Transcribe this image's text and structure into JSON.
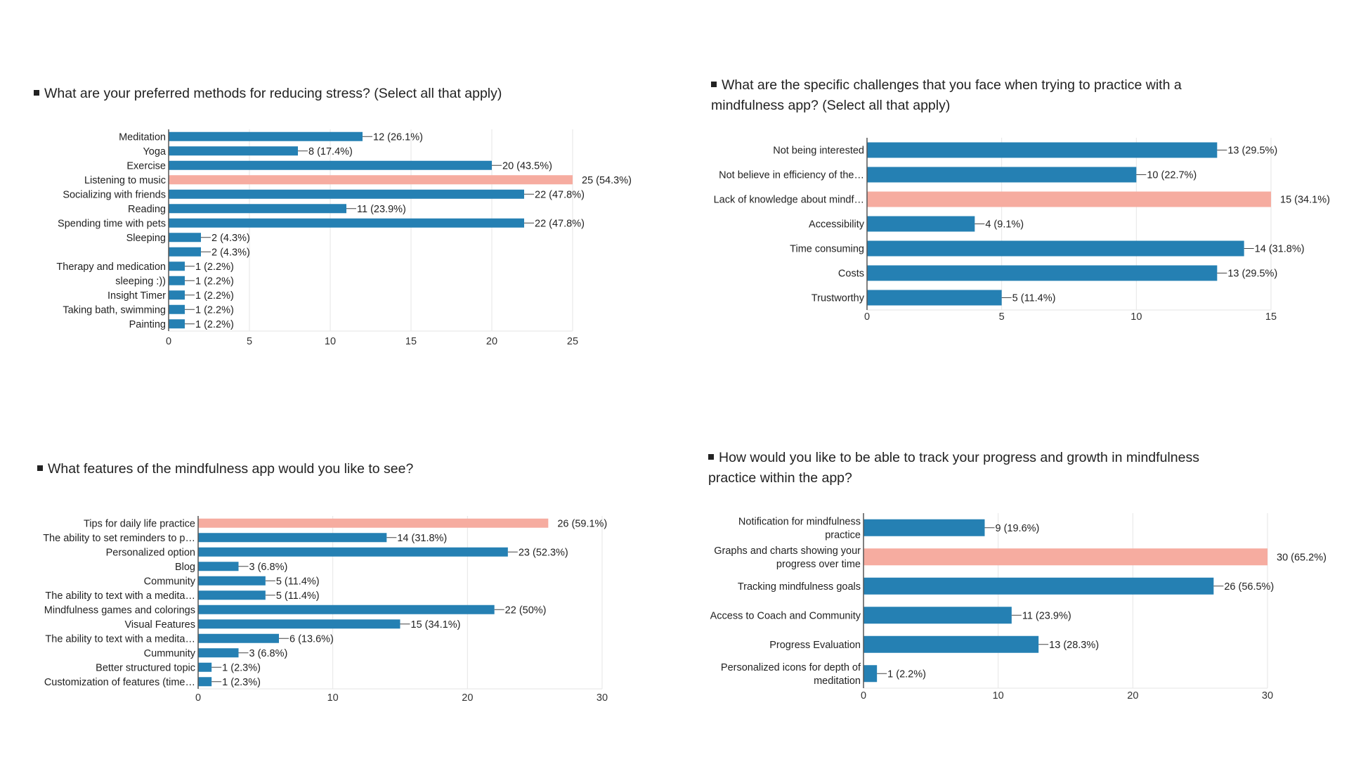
{
  "colors": {
    "bar": "#2580b3",
    "highlight": "#f6aca0",
    "grid": "#e6e6e6",
    "axis": "#555555"
  },
  "chart_data": [
    {
      "type": "bar",
      "orientation": "horizontal",
      "title": "What are your preferred methods for reducing stress? (Select all that apply)",
      "categories": [
        "Meditation",
        "Yoga",
        "Exercise",
        "Listening to music",
        "Socializing with friends",
        "Reading",
        "Spending time with pets",
        "Sleeping",
        "",
        "Therapy and medication",
        "sleeping :))",
        "Insight Timer",
        "Taking bath, swimming",
        "Painting"
      ],
      "values": [
        12,
        8,
        20,
        25,
        22,
        11,
        22,
        2,
        2,
        1,
        1,
        1,
        1,
        1
      ],
      "value_labels": [
        "12 (26.1%)",
        "8 (17.4%)",
        "20 (43.5%)",
        "25 (54.3%)",
        "22 (47.8%)",
        "11 (23.9%)",
        "22 (47.8%)",
        "2 (4.3%)",
        "2 (4.3%)",
        "1 (2.2%)",
        "1 (2.2%)",
        "1 (2.2%)",
        "1 (2.2%)",
        "1 (2.2%)"
      ],
      "highlight_index": 3,
      "xlim": [
        0,
        25
      ],
      "xticks": [
        0,
        5,
        10,
        15,
        20,
        25
      ],
      "grid": true
    },
    {
      "type": "bar",
      "orientation": "horizontal",
      "title": "What are the specific challenges that you face when trying to practice with a mindfulness app? (Select all that apply)",
      "categories": [
        "Not being interested",
        "Not believe in efficiency of the…",
        "Lack of knowledge about mindf…",
        "Accessibility",
        "Time consuming",
        "Costs",
        "Trustworthy"
      ],
      "values": [
        13,
        10,
        15,
        4,
        14,
        13,
        5
      ],
      "value_labels": [
        "13 (29.5%)",
        "10 (22.7%)",
        "15 (34.1%)",
        "4 (9.1%)",
        "14 (31.8%)",
        "13 (29.5%)",
        "5 (11.4%)"
      ],
      "highlight_index": 2,
      "xlim": [
        0,
        15
      ],
      "xticks": [
        0,
        5,
        10,
        15
      ],
      "grid": true
    },
    {
      "type": "bar",
      "orientation": "horizontal",
      "title": "What features of the mindfulness app would you like to see?",
      "categories": [
        "Tips for daily life practice",
        "The ability to set reminders to p…",
        "Personalized option",
        "Blog",
        "Community",
        "The ability to text with a medita…",
        "Mindfulness games and colorings",
        "Visual Features",
        "The ability to text with a medita…",
        "Cummunity",
        "Better structured topic",
        "Customization of features (time…"
      ],
      "values": [
        26,
        14,
        23,
        3,
        5,
        5,
        22,
        15,
        6,
        3,
        1,
        1
      ],
      "value_labels": [
        "26 (59.1%)",
        "14 (31.8%)",
        "23 (52.3%)",
        "3 (6.8%)",
        "5 (11.4%)",
        "5 (11.4%)",
        "22 (50%)",
        "15 (34.1%)",
        "6 (13.6%)",
        "3 (6.8%)",
        "1 (2.3%)",
        "1 (2.3%)"
      ],
      "highlight_index": 0,
      "xlim": [
        0,
        30
      ],
      "xticks": [
        0,
        10,
        20,
        30
      ],
      "grid": true
    },
    {
      "type": "bar",
      "orientation": "horizontal",
      "title": "How would you like to be able to track your progress and growth in mindfulness practice within the app?",
      "categories": [
        [
          "Notification for mindfulness",
          "practice"
        ],
        [
          "Graphs and charts showing your",
          "progress over time"
        ],
        [
          "Tracking mindfulness goals"
        ],
        [
          "Access to Coach and Community"
        ],
        [
          "Progress Evaluation"
        ],
        [
          "Personalized icons for depth of",
          "meditation"
        ]
      ],
      "values": [
        9,
        30,
        26,
        11,
        13,
        1
      ],
      "value_labels": [
        "9 (19.6%)",
        "30 (65.2%)",
        "26 (56.5%)",
        "11 (23.9%)",
        "13 (28.3%)",
        "1 (2.2%)"
      ],
      "highlight_index": 1,
      "xlim": [
        0,
        30
      ],
      "xticks": [
        0,
        10,
        20,
        30
      ],
      "grid": true
    }
  ]
}
